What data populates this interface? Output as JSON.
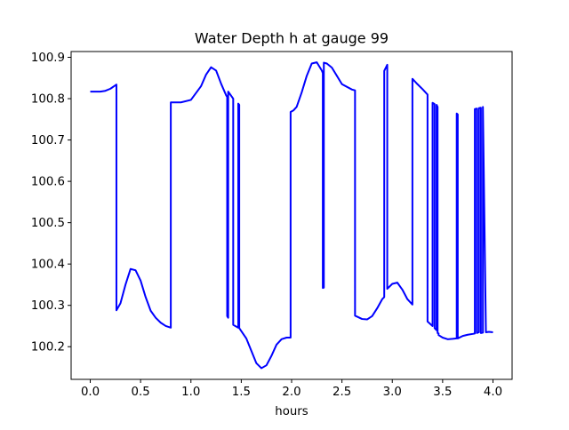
{
  "chart_data": {
    "type": "line",
    "title": "Water Depth h at gauge 99",
    "xlabel": "hours",
    "ylabel": "",
    "xlim": [
      -0.19,
      4.19
    ],
    "ylim": [
      100.121,
      100.914
    ],
    "xticks": [
      {
        "value": 0.0,
        "label": "0.0"
      },
      {
        "value": 0.5,
        "label": "0.5"
      },
      {
        "value": 1.0,
        "label": "1.0"
      },
      {
        "value": 1.5,
        "label": "1.5"
      },
      {
        "value": 2.0,
        "label": "2.0"
      },
      {
        "value": 2.5,
        "label": "2.5"
      },
      {
        "value": 3.0,
        "label": "3.0"
      },
      {
        "value": 3.5,
        "label": "3.5"
      },
      {
        "value": 4.0,
        "label": "4.0"
      }
    ],
    "yticks": [
      {
        "value": 100.2,
        "label": "100.2"
      },
      {
        "value": 100.3,
        "label": "100.3"
      },
      {
        "value": 100.4,
        "label": "100.4"
      },
      {
        "value": 100.5,
        "label": "100.5"
      },
      {
        "value": 100.6,
        "label": "100.6"
      },
      {
        "value": 100.7,
        "label": "100.7"
      },
      {
        "value": 100.8,
        "label": "100.8"
      },
      {
        "value": 100.9,
        "label": "100.9"
      }
    ],
    "grid": false,
    "legend": "none",
    "line_color": "#0000ff",
    "series": [
      {
        "x": [
          0.0,
          0.1,
          0.15,
          0.2,
          0.26,
          0.26,
          0.3,
          0.35,
          0.4,
          0.45,
          0.5,
          0.55,
          0.6,
          0.65,
          0.7,
          0.75,
          0.8,
          0.8,
          0.9,
          1.0,
          1.1,
          1.15,
          1.2,
          1.25,
          1.3,
          1.35,
          1.36,
          1.36,
          1.37,
          1.37,
          1.42,
          1.42,
          1.47,
          1.47,
          1.48,
          1.48,
          1.55,
          1.6,
          1.65,
          1.7,
          1.75,
          1.8,
          1.85,
          1.9,
          1.95,
          1.99,
          1.99,
          2.02,
          2.05,
          2.1,
          2.15,
          2.2,
          2.25,
          2.3,
          2.31,
          2.31,
          2.32,
          2.32,
          2.35,
          2.4,
          2.5,
          2.6,
          2.63,
          2.63,
          2.7,
          2.75,
          2.8,
          2.85,
          2.9,
          2.92,
          2.92,
          2.95,
          2.95,
          3.0,
          3.05,
          3.1,
          3.15,
          3.2,
          3.2,
          3.25,
          3.3,
          3.35,
          3.35,
          3.4,
          3.4,
          3.42,
          3.42,
          3.44,
          3.44,
          3.45,
          3.45,
          3.46,
          3.46,
          3.5,
          3.55,
          3.6,
          3.64,
          3.64,
          3.65,
          3.65,
          3.7,
          3.75,
          3.8,
          3.82,
          3.82,
          3.84,
          3.84,
          3.86,
          3.86,
          3.88,
          3.88,
          3.9,
          3.9,
          3.93,
          3.96,
          4.0
        ],
        "y": [
          100.817,
          100.817,
          100.819,
          100.824,
          100.834,
          100.288,
          100.305,
          100.35,
          100.388,
          100.385,
          100.36,
          100.32,
          100.287,
          100.27,
          100.258,
          100.25,
          100.246,
          100.791,
          100.791,
          100.797,
          100.83,
          100.858,
          100.876,
          100.868,
          100.836,
          100.808,
          100.804,
          100.274,
          100.27,
          100.817,
          100.8,
          100.253,
          100.246,
          100.788,
          100.785,
          100.245,
          100.22,
          100.19,
          100.16,
          100.148,
          100.155,
          100.178,
          100.205,
          100.218,
          100.222,
          100.222,
          100.768,
          100.772,
          100.78,
          100.815,
          100.855,
          100.885,
          100.888,
          100.868,
          100.862,
          100.342,
          100.343,
          100.887,
          100.885,
          100.875,
          100.835,
          100.822,
          100.82,
          100.275,
          100.267,
          100.266,
          100.274,
          100.293,
          100.315,
          100.32,
          100.867,
          100.882,
          100.34,
          100.352,
          100.355,
          100.338,
          100.315,
          100.302,
          100.848,
          100.835,
          100.823,
          100.81,
          100.261,
          100.25,
          100.79,
          100.787,
          100.245,
          100.24,
          100.785,
          100.78,
          100.233,
          100.232,
          100.228,
          100.222,
          100.218,
          100.219,
          100.22,
          100.764,
          100.762,
          100.22,
          100.226,
          100.229,
          100.231,
          100.232,
          100.775,
          100.776,
          100.233,
          100.235,
          100.777,
          100.778,
          100.233,
          100.234,
          100.78,
          100.235,
          100.236,
          100.235
        ]
      }
    ]
  }
}
